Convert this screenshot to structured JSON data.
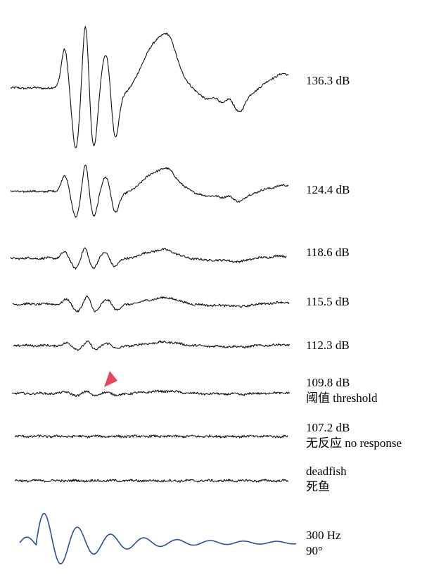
{
  "chart_data": {
    "type": "line",
    "traces": [
      {
        "label_lines": [
          "136.3 dB"
        ],
        "amplitude": 1.0,
        "kind": "response"
      },
      {
        "label_lines": [
          "124.4 dB"
        ],
        "amplitude": 0.55,
        "kind": "response"
      },
      {
        "label_lines": [
          "118.6 dB"
        ],
        "amplitude": 0.22,
        "kind": "response"
      },
      {
        "label_lines": [
          "115.5 dB"
        ],
        "amplitude": 0.1,
        "kind": "response"
      },
      {
        "label_lines": [
          "112.3 dB"
        ],
        "amplitude": 0.06,
        "kind": "response"
      },
      {
        "label_lines": [
          "109.8 dB",
          "阈值 threshold"
        ],
        "amplitude": 0.02,
        "kind": "response",
        "marker": true
      },
      {
        "label_lines": [
          "107.2 dB",
          "无反应 no response"
        ],
        "amplitude": 0.0,
        "kind": "noise"
      },
      {
        "label_lines": [
          "deadfish",
          "死鱼"
        ],
        "amplitude": 0.0,
        "kind": "noise"
      },
      {
        "label_lines": [
          "300 Hz",
          "90°"
        ],
        "amplitude": 1.0,
        "kind": "stimulus"
      }
    ],
    "colors": {
      "response": "#111111",
      "stimulus": "#2a4f9e",
      "marker": "#e5485a"
    }
  }
}
